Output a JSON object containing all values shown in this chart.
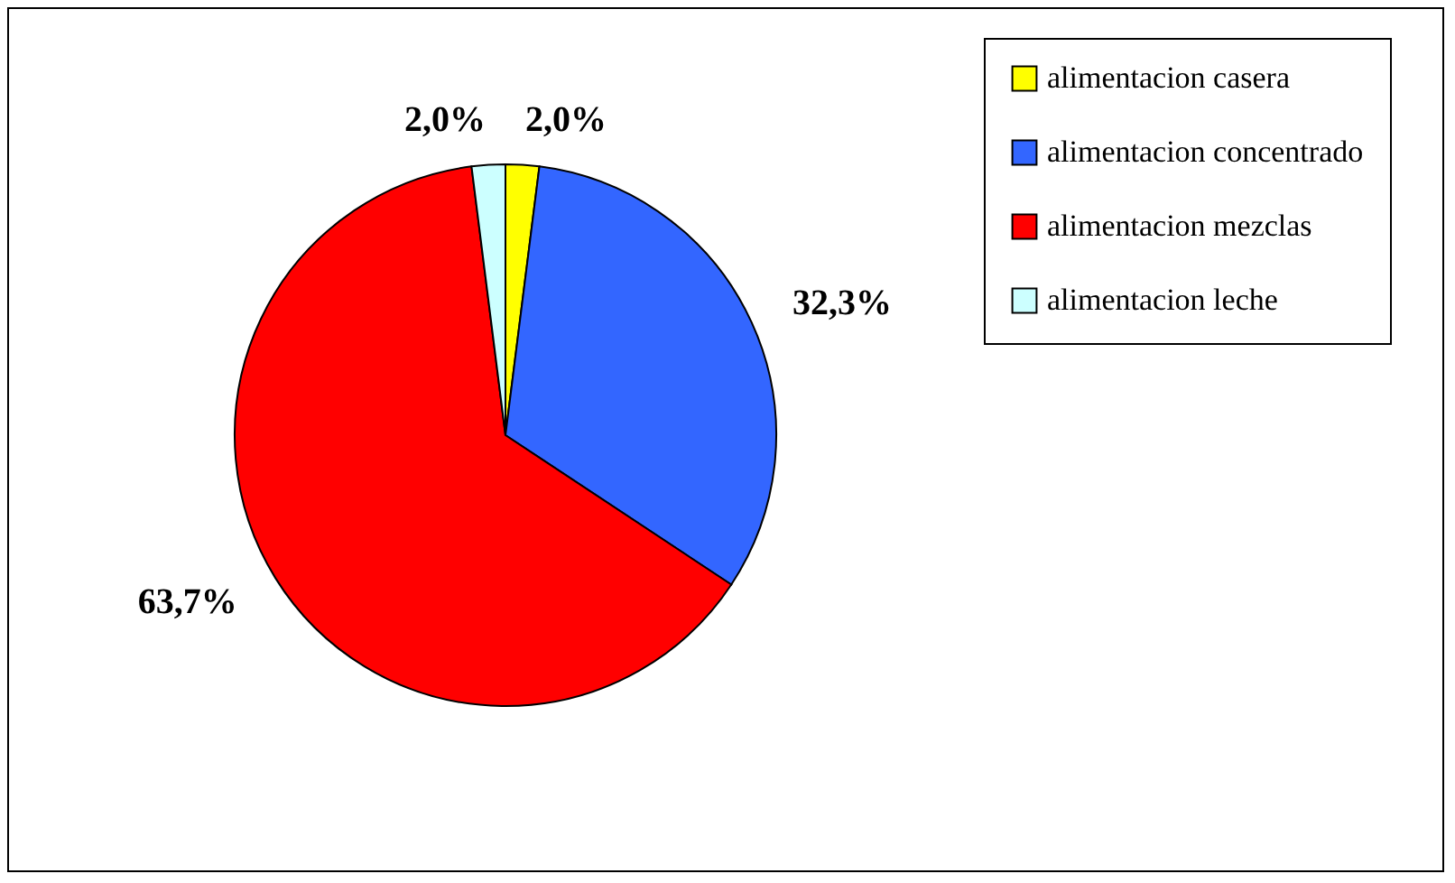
{
  "chart_data": {
    "type": "pie",
    "categories": [
      "alimentacion casera",
      "alimentacion concentrado",
      "alimentacion mezclas",
      "alimentacion leche"
    ],
    "values": [
      2.0,
      32.3,
      63.7,
      2.0
    ],
    "colors": [
      "#ffff00",
      "#3366ff",
      "#ff0000",
      "#ccffff"
    ],
    "value_labels": [
      "2,0%",
      "32,3%",
      "63,7%",
      "2,0%"
    ],
    "legend": "right"
  }
}
